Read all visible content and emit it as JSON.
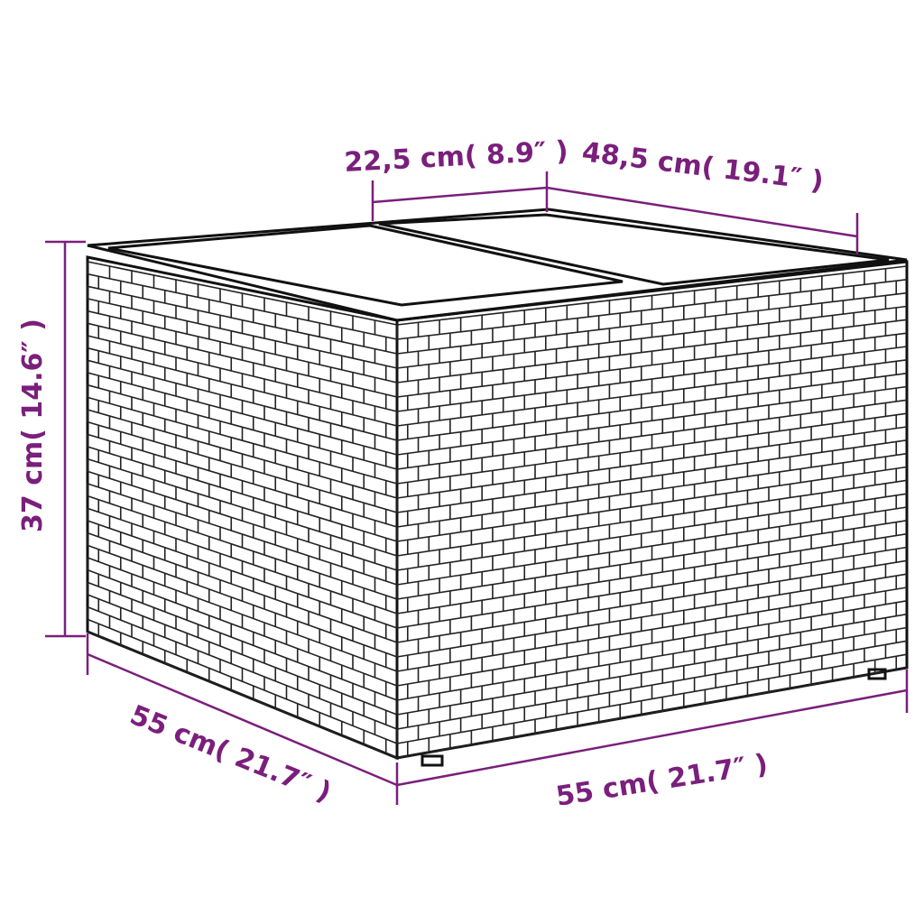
{
  "dimensions": {
    "top_segment": "22,5 cm( 8.9″ )",
    "top_depth": "48,5 cm( 19.1″ )",
    "height": "37 cm( 14.6″ )",
    "front_width": "55 cm( 21.7″ )",
    "side_width": "55 cm( 21.7″ )"
  },
  "colors": {
    "dimension": "#7a1f7c",
    "outline": "#111111"
  },
  "product": "rattan side table with glass top"
}
